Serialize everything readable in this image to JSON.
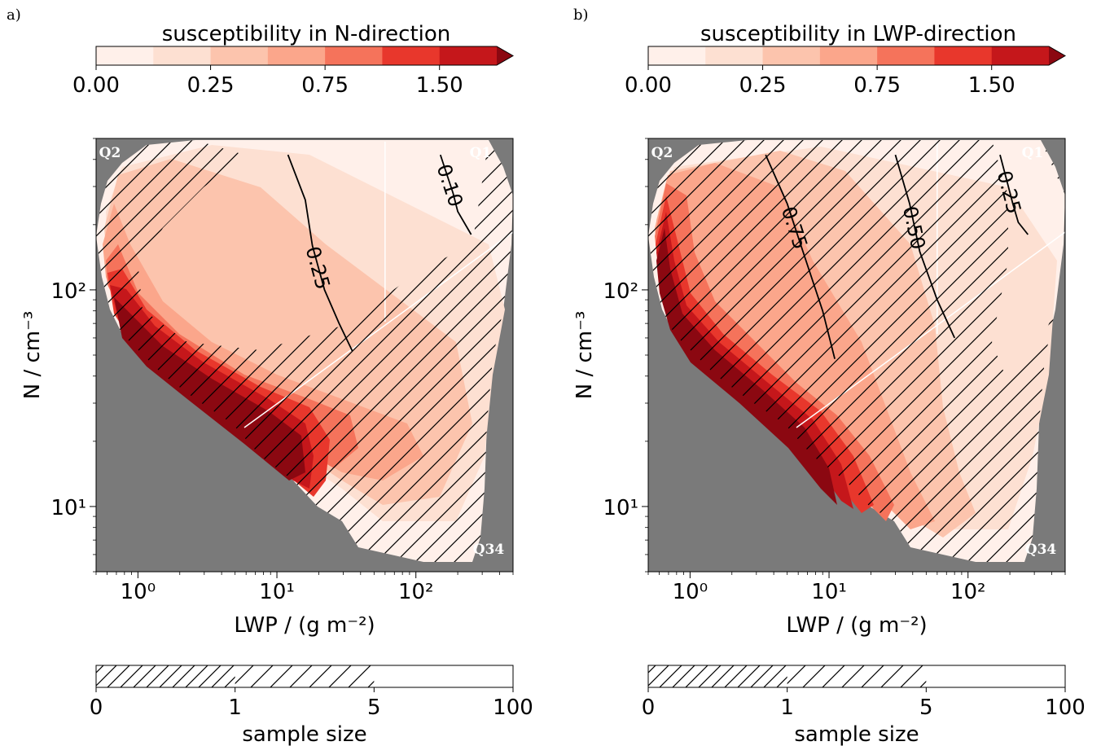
{
  "figure": {
    "panel_a_label": "a)",
    "panel_b_label": "b)"
  },
  "colors": {
    "levels": [
      "#fff0ea",
      "#fde0d2",
      "#fcc4ad",
      "#fba68b",
      "#f5735b",
      "#e8372c",
      "#c5171b",
      "#8b0811"
    ],
    "no_data": "#7a7a7a",
    "hatch": "#000000",
    "quadrant_line": "#ffffff"
  },
  "chart_data": [
    {
      "type": "heatmap",
      "panel": "a",
      "title": "susceptibility in N-direction",
      "xlabel": "LWP / (g m⁻²)",
      "ylabel": "N / cm⁻³",
      "xscale": "log",
      "yscale": "log",
      "xlim": [
        0.5,
        500
      ],
      "ylim": [
        5,
        500
      ],
      "xticks": [
        "10⁰",
        "10¹",
        "10²"
      ],
      "yticks": [
        "10¹",
        "10²"
      ],
      "colorbar": {
        "label": "susceptibility in N-direction",
        "levels": [
          0.0,
          0.1,
          0.25,
          0.5,
          0.75,
          1.0,
          1.5,
          2.0
        ],
        "tick_labels": [
          "0.00",
          "0.25",
          "0.75",
          "1.50"
        ],
        "extend": "max"
      },
      "contours": [
        {
          "label": "0.25",
          "points": [
            [
              12,
              420
            ],
            [
              16,
              260
            ],
            [
              18,
              160
            ],
            [
              22,
              100
            ],
            [
              28,
              70
            ],
            [
              35,
              52
            ]
          ]
        },
        {
          "label": "0.10",
          "points": [
            [
              150,
              420
            ],
            [
              170,
              330
            ],
            [
              185,
              280
            ],
            [
              200,
              230
            ],
            [
              250,
              180
            ]
          ]
        }
      ],
      "quadrants": [
        "Q1",
        "Q2",
        "Q34"
      ],
      "sample_size": {
        "label": "sample size",
        "ticks": [
          "0",
          "1",
          "5",
          "100"
        ],
        "hatched_below": "5"
      }
    },
    {
      "type": "heatmap",
      "panel": "b",
      "title": "susceptibility in LWP-direction",
      "xlabel": "LWP / (g m⁻²)",
      "ylabel": "N / cm⁻³",
      "xscale": "log",
      "yscale": "log",
      "xlim": [
        0.5,
        500
      ],
      "ylim": [
        5,
        500
      ],
      "xticks": [
        "10⁰",
        "10¹",
        "10²"
      ],
      "yticks": [
        "10¹",
        "10²"
      ],
      "colorbar": {
        "label": "susceptibility in LWP-direction",
        "levels": [
          0.0,
          0.1,
          0.25,
          0.5,
          0.75,
          1.0,
          1.5,
          2.0
        ],
        "tick_labels": [
          "0.00",
          "0.25",
          "0.75",
          "1.50"
        ],
        "extend": "max"
      },
      "contours": [
        {
          "label": "0.75",
          "points": [
            [
              3.5,
              420
            ],
            [
              5,
              250
            ],
            [
              6.5,
              150
            ],
            [
              9,
              80
            ],
            [
              11,
              48
            ]
          ]
        },
        {
          "label": "0.50",
          "points": [
            [
              30,
              420
            ],
            [
              38,
              250
            ],
            [
              45,
              150
            ],
            [
              60,
              90
            ],
            [
              80,
              60
            ]
          ]
        },
        {
          "label": "0.25",
          "points": [
            [
              170,
              420
            ],
            [
              190,
              320
            ],
            [
              210,
              250
            ],
            [
              230,
              205
            ],
            [
              270,
              180
            ]
          ]
        }
      ],
      "quadrants": [
        "Q1",
        "Q2",
        "Q34"
      ],
      "sample_size": {
        "label": "sample size",
        "ticks": [
          "0",
          "1",
          "5",
          "100"
        ],
        "hatched_below": "5"
      }
    }
  ]
}
